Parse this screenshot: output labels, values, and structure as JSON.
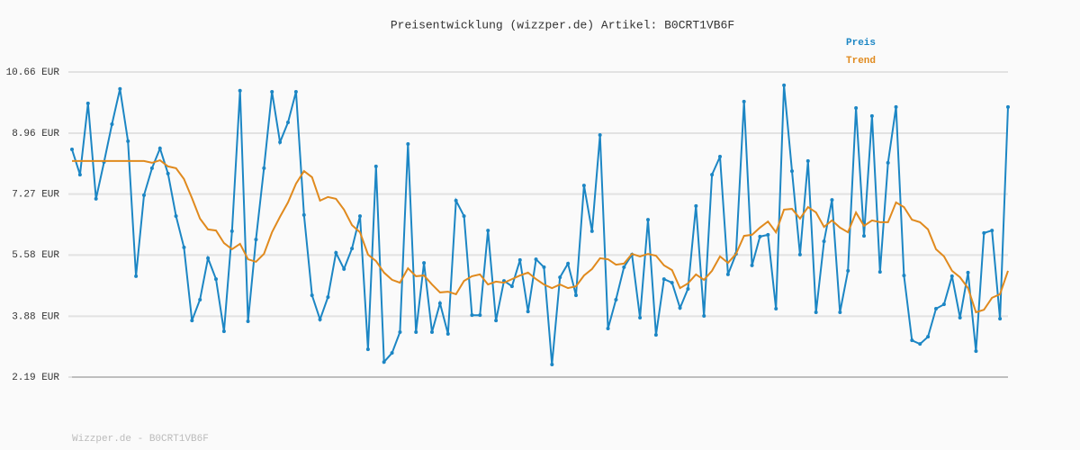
{
  "chart_data": {
    "type": "line",
    "title": "Preisentwicklung (wizzper.de) Artikel: B0CRT1VB6F",
    "footer": "Wizzper.de - B0CRT1VB6F",
    "ylim": [
      2.19,
      10.66
    ],
    "yticks": [
      {
        "value": 2.19,
        "label": "2.19 EUR"
      },
      {
        "value": 3.88,
        "label": "3.88 EUR"
      },
      {
        "value": 5.58,
        "label": "5.58 EUR"
      },
      {
        "value": 7.27,
        "label": "7.27 EUR"
      },
      {
        "value": 8.96,
        "label": "8.96 EUR"
      },
      {
        "value": 10.66,
        "label": "10.66 EUR"
      }
    ],
    "grid": true,
    "legend": "top-right",
    "series": [
      {
        "name": "Preis",
        "color": "#1c86c4",
        "markers": true,
        "values": [
          8.51,
          7.81,
          9.79,
          7.14,
          8.16,
          9.21,
          10.19,
          8.74,
          4.99,
          7.24,
          7.99,
          8.54,
          7.84,
          6.66,
          5.79,
          3.76,
          4.34,
          5.49,
          4.91,
          3.46,
          6.24,
          10.14,
          3.74,
          6.01,
          7.99,
          10.11,
          8.71,
          9.26,
          10.11,
          6.69,
          4.46,
          3.79,
          4.41,
          5.64,
          5.19,
          5.76,
          6.66,
          2.96,
          8.04,
          2.61,
          2.86,
          3.44,
          8.66,
          3.44,
          5.36,
          3.44,
          4.24,
          3.39,
          7.09,
          6.66,
          3.91,
          3.91,
          6.26,
          3.76,
          4.86,
          4.71,
          5.44,
          4.01,
          5.46,
          5.24,
          2.54,
          4.96,
          5.34,
          4.46,
          7.51,
          6.24,
          8.91,
          3.54,
          4.34,
          5.24,
          5.59,
          3.84,
          6.56,
          3.36,
          4.91,
          4.81,
          4.11,
          4.64,
          6.94,
          3.89,
          7.81,
          8.31,
          5.04,
          5.61,
          9.84,
          5.29,
          6.09,
          6.14,
          4.09,
          10.29,
          7.91,
          5.59,
          8.19,
          3.99,
          5.96,
          7.11,
          3.99,
          5.14,
          9.66,
          6.11,
          9.44,
          5.11,
          8.14,
          9.69,
          5.01,
          3.21,
          3.11,
          3.31,
          4.09,
          4.21,
          4.99,
          3.84,
          5.09,
          2.91,
          6.19,
          6.26,
          3.81,
          9.69
        ]
      },
      {
        "name": "Trend",
        "color": "#e08a1e",
        "markers": false,
        "values": [
          8.19,
          8.19,
          8.19,
          8.19,
          8.19,
          8.19,
          8.19,
          8.19,
          8.19,
          8.19,
          8.14,
          8.21,
          8.04,
          7.99,
          7.69,
          7.16,
          6.59,
          6.29,
          6.26,
          5.91,
          5.74,
          5.89,
          5.46,
          5.39,
          5.61,
          6.21,
          6.64,
          7.04,
          7.56,
          7.91,
          7.74,
          7.09,
          7.19,
          7.14,
          6.84,
          6.41,
          6.21,
          5.59,
          5.41,
          5.09,
          4.89,
          4.81,
          5.21,
          4.99,
          5.01,
          4.76,
          4.54,
          4.56,
          4.49,
          4.86,
          4.99,
          5.04,
          4.76,
          4.84,
          4.81,
          4.91,
          5.01,
          5.09,
          4.91,
          4.76,
          4.66,
          4.76,
          4.66,
          4.71,
          5.01,
          5.19,
          5.49,
          5.46,
          5.31,
          5.34,
          5.61,
          5.54,
          5.61,
          5.56,
          5.29,
          5.16,
          4.66,
          4.79,
          5.04,
          4.89,
          5.14,
          5.54,
          5.36,
          5.61,
          6.11,
          6.14,
          6.34,
          6.51,
          6.21,
          6.84,
          6.86,
          6.59,
          6.91,
          6.76,
          6.36,
          6.54,
          6.34,
          6.21,
          6.76,
          6.39,
          6.54,
          6.49,
          6.49,
          7.04,
          6.91,
          6.56,
          6.49,
          6.29,
          5.74,
          5.54,
          5.14,
          4.96,
          4.66,
          3.99,
          4.06,
          4.39,
          4.49,
          5.14
        ]
      }
    ]
  }
}
